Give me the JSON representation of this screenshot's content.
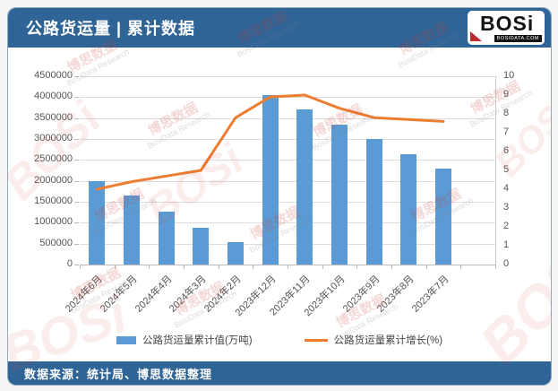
{
  "header": {
    "title": "公路货运量 | 累计数据",
    "logo": {
      "name": "BOSi",
      "domain": "BOSIDATA.COM"
    }
  },
  "footer": {
    "source": "数据来源：统计局、博思数据整理"
  },
  "watermark": {
    "cn": "博思数据",
    "en": "BosiData Research",
    "logo": "BOSi"
  },
  "colors": {
    "header_bg": "#2F6496",
    "footer_bg": "#2F6496",
    "bar": "#5B9BD5",
    "line": "#ED7D31",
    "grid": "#DDDDDD",
    "axis_text": "#555555"
  },
  "chart_data": {
    "type": "bar",
    "subtype": "bar+line combo, dual axis",
    "categories": [
      "2024年6月",
      "2024年5月",
      "2024年4月",
      "2024年3月",
      "2024年2月",
      "2023年12月",
      "2023年11月",
      "2023年10月",
      "2023年9月",
      "2023年8月",
      "2023年7月"
    ],
    "series": [
      {
        "name": "公路货运量累计值(万吨)",
        "type": "bar",
        "axis": "left",
        "color": "#5B9BD5",
        "values": [
          2000000,
          1640000,
          1260000,
          880000,
          535000,
          4050000,
          3700000,
          3350000,
          3000000,
          2640000,
          2290000
        ]
      },
      {
        "name": "公路货运量累计增长(%)",
        "type": "line",
        "axis": "right",
        "color": "#ED7D31",
        "values": [
          4.0,
          4.4,
          4.7,
          5.0,
          7.8,
          8.9,
          9.0,
          8.3,
          7.8,
          7.7,
          7.6
        ]
      }
    ],
    "left_axis": {
      "min": 0,
      "max": 4500000,
      "step": 500000,
      "ticks": [
        "4500000",
        "4000000",
        "3500000",
        "3000000",
        "2500000",
        "2000000",
        "1500000",
        "1000000",
        "500000",
        "0"
      ]
    },
    "right_axis": {
      "min": 0,
      "max": 10,
      "step": 1,
      "ticks": [
        "10",
        "9",
        "8",
        "7",
        "6",
        "5",
        "4",
        "3",
        "2",
        "1",
        "0"
      ]
    },
    "grid": true,
    "legend_position": "bottom"
  }
}
